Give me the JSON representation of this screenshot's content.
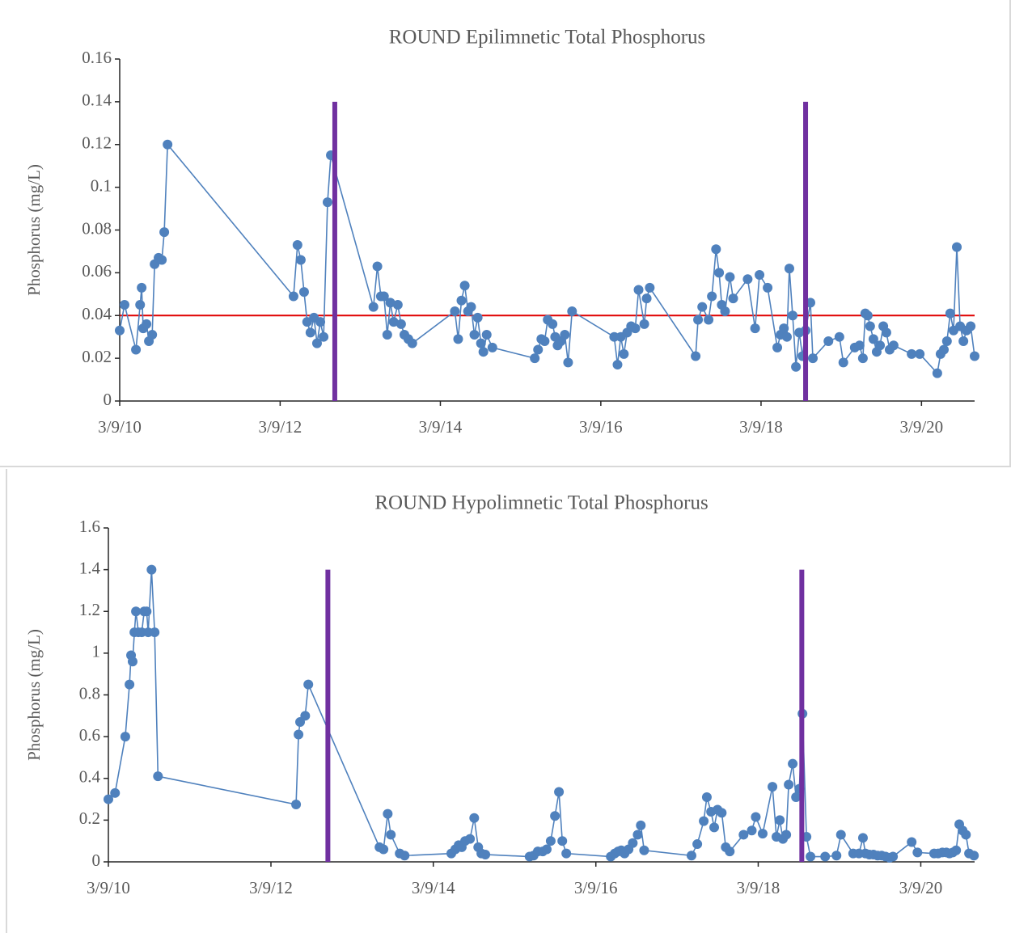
{
  "chart_data": [
    {
      "type": "line",
      "title": "ROUND Epilimnetic Total Phosphorus",
      "ylabel": "Phosphorus (mg/L)",
      "xlim": [
        "2010-03-09",
        "2020-11-06"
      ],
      "xticks": [
        {
          "value": "2010-03-09",
          "label": "3/9/10"
        },
        {
          "value": "2012-03-09",
          "label": "3/9/12"
        },
        {
          "value": "2014-03-09",
          "label": "3/9/14"
        },
        {
          "value": "2016-03-09",
          "label": "3/9/16"
        },
        {
          "value": "2018-03-09",
          "label": "3/9/18"
        },
        {
          "value": "2020-03-09",
          "label": "3/9/20"
        }
      ],
      "ylim": [
        0,
        0.16
      ],
      "yticks": [
        0,
        0.02,
        0.04,
        0.06,
        0.08,
        0.1,
        0.12,
        0.14,
        0.16
      ],
      "color": "#4f81bd",
      "x": [
        "2010-03-09",
        "2010-03-31",
        "2010-05-22",
        "2010-06-10",
        "2010-06-17",
        "2010-06-24",
        "2010-07-09",
        "2010-07-20",
        "2010-08-04",
        "2010-08-15",
        "2010-09-02",
        "2010-09-17",
        "2010-09-28",
        "2010-10-13",
        "2012-05-09",
        "2012-05-27",
        "2012-06-11",
        "2012-06-26",
        "2012-07-10",
        "2012-07-25",
        "2012-08-10",
        "2012-08-24",
        "2012-09-08",
        "2012-09-23",
        "2012-10-11",
        "2012-10-26",
        "2013-05-08",
        "2013-05-26",
        "2013-06-11",
        "2013-06-25",
        "2013-07-10",
        "2013-07-24",
        "2013-08-08",
        "2013-08-27",
        "2013-09-11",
        "2013-09-26",
        "2013-10-14",
        "2013-11-01",
        "2014-05-14",
        "2014-05-29",
        "2014-06-13",
        "2014-06-28",
        "2014-07-13",
        "2014-07-27",
        "2014-08-11",
        "2014-08-26",
        "2014-09-10",
        "2014-09-21",
        "2014-10-06",
        "2014-11-01",
        "2015-05-13",
        "2015-05-28",
        "2015-06-12",
        "2015-06-27",
        "2015-07-11",
        "2015-08-02",
        "2015-08-14",
        "2015-08-25",
        "2015-09-09",
        "2015-09-27",
        "2015-10-12",
        "2015-10-30",
        "2016-05-09",
        "2016-05-24",
        "2016-06-08",
        "2016-06-22",
        "2016-07-07",
        "2016-07-25",
        "2016-08-13",
        "2016-08-28",
        "2016-09-23",
        "2016-10-04",
        "2016-10-18",
        "2017-05-15",
        "2017-05-26",
        "2017-06-14",
        "2017-07-13",
        "2017-07-28",
        "2017-08-16",
        "2017-08-30",
        "2017-09-11",
        "2017-09-26",
        "2017-10-18",
        "2017-11-02",
        "2018-01-07",
        "2018-02-10",
        "2018-03-02",
        "2018-04-08",
        "2018-05-22",
        "2018-06-06",
        "2018-06-21",
        "2018-07-05",
        "2018-07-16",
        "2018-07-31",
        "2018-08-15",
        "2018-08-30",
        "2018-09-14",
        "2018-09-28",
        "2018-10-20",
        "2018-10-31",
        "2019-01-10",
        "2019-03-01",
        "2019-03-19",
        "2019-05-10",
        "2019-06-01",
        "2019-06-16",
        "2019-06-27",
        "2019-07-08",
        "2019-07-19",
        "2019-08-03",
        "2019-08-18",
        "2019-09-02",
        "2019-09-17",
        "2019-10-01",
        "2019-10-16",
        "2019-11-03",
        "2020-01-24",
        "2020-03-01",
        "2020-05-20",
        "2020-06-04",
        "2020-06-19",
        "2020-07-03",
        "2020-07-18",
        "2020-08-02",
        "2020-08-17",
        "2020-09-01",
        "2020-09-16",
        "2020-09-30",
        "2020-10-19",
        "2020-11-06"
      ],
      "values": [
        0.033,
        0.045,
        0.024,
        0.045,
        0.053,
        0.034,
        0.036,
        0.028,
        0.031,
        0.064,
        0.067,
        0.066,
        0.079,
        0.12,
        0.049,
        0.073,
        0.066,
        0.051,
        0.037,
        0.032,
        0.039,
        0.027,
        0.037,
        0.03,
        0.093,
        0.115,
        0.044,
        0.063,
        0.049,
        0.049,
        0.031,
        0.046,
        0.037,
        0.045,
        0.036,
        0.031,
        0.029,
        0.027,
        0.042,
        0.029,
        0.047,
        0.054,
        0.042,
        0.044,
        0.031,
        0.039,
        0.027,
        0.023,
        0.031,
        0.025,
        0.02,
        0.024,
        0.029,
        0.028,
        0.038,
        0.036,
        0.03,
        0.026,
        0.028,
        0.031,
        0.018,
        0.042,
        0.03,
        0.017,
        0.03,
        0.022,
        0.032,
        0.035,
        0.034,
        0.052,
        0.036,
        0.048,
        0.053,
        0.021,
        0.038,
        0.044,
        0.038,
        0.049,
        0.071,
        0.06,
        0.045,
        0.042,
        0.058,
        0.048,
        0.057,
        0.034,
        0.059,
        0.053,
        0.025,
        0.031,
        0.034,
        0.03,
        0.062,
        0.04,
        0.016,
        0.032,
        0.021,
        0.033,
        0.046,
        0.02,
        0.028,
        0.03,
        0.018,
        0.025,
        0.026,
        0.02,
        0.041,
        0.04,
        0.035,
        0.029,
        0.023,
        0.026,
        0.035,
        0.032,
        0.024,
        0.026,
        0.022,
        0.022,
        0.013,
        0.022,
        0.024,
        0.028,
        0.041,
        0.033,
        0.072,
        0.035,
        0.028,
        0.033,
        0.035,
        0.021
      ],
      "hlines": [
        {
          "value": 0.04,
          "color": "#e00000"
        }
      ],
      "vlines": [
        {
          "x": "2012-11-13",
          "ymax": 0.14
        },
        {
          "x": "2018-09-28",
          "ymax": 0.14
        }
      ],
      "vline_color": "#7030a0"
    },
    {
      "type": "line",
      "title": "ROUND Hypolimnetic Total Phosphorus",
      "ylabel": "Phosphorus (mg/L)",
      "xlim": [
        "2010-03-09",
        "2020-11-06"
      ],
      "xticks": [
        {
          "value": "2010-03-09",
          "label": "3/9/10"
        },
        {
          "value": "2012-03-09",
          "label": "3/9/12"
        },
        {
          "value": "2014-03-09",
          "label": "3/9/14"
        },
        {
          "value": "2016-03-09",
          "label": "3/9/16"
        },
        {
          "value": "2018-03-09",
          "label": "3/9/18"
        },
        {
          "value": "2020-03-09",
          "label": "3/9/20"
        }
      ],
      "ylim": [
        0,
        1.6
      ],
      "yticks": [
        0,
        0.2,
        0.4,
        0.6,
        0.8,
        1,
        1.2,
        1.4,
        1.6
      ],
      "color": "#4f81bd",
      "x": [
        "2010-03-09",
        "2010-04-08",
        "2010-05-24",
        "2010-06-12",
        "2010-06-19",
        "2010-06-26",
        "2010-07-04",
        "2010-07-11",
        "2010-07-22",
        "2010-08-06",
        "2010-08-17",
        "2010-08-28",
        "2010-09-04",
        "2010-09-19",
        "2010-10-03",
        "2010-10-18",
        "2012-06-30",
        "2012-07-11",
        "2012-07-18",
        "2012-08-10",
        "2012-08-24",
        "2013-07-10",
        "2013-07-28",
        "2013-08-16",
        "2013-08-30",
        "2013-10-09",
        "2013-10-31",
        "2014-05-29",
        "2014-06-16",
        "2014-07-01",
        "2014-07-15",
        "2014-07-30",
        "2014-08-21",
        "2014-09-09",
        "2014-09-27",
        "2014-10-11",
        "2014-10-29",
        "2015-05-16",
        "2015-06-03",
        "2015-06-22",
        "2015-07-14",
        "2015-08-01",
        "2015-08-19",
        "2015-09-07",
        "2015-09-25",
        "2015-10-10",
        "2015-10-28",
        "2016-05-15",
        "2016-06-02",
        "2016-06-17",
        "2016-07-01",
        "2016-07-16",
        "2016-08-03",
        "2016-08-22",
        "2016-09-13",
        "2016-09-27",
        "2016-10-12",
        "2017-05-13",
        "2017-06-08",
        "2017-07-07",
        "2017-07-21",
        "2017-08-09",
        "2017-08-23",
        "2017-09-07",
        "2017-09-26",
        "2017-10-14",
        "2017-11-01",
        "2018-01-02",
        "2018-02-08",
        "2018-02-26",
        "2018-03-29",
        "2018-05-12",
        "2018-05-30",
        "2018-06-14",
        "2018-06-28",
        "2018-07-13",
        "2018-07-24",
        "2018-08-11",
        "2018-08-26",
        "2018-09-10",
        "2018-09-24",
        "2018-10-12",
        "2018-10-30",
        "2019-01-04",
        "2019-02-24",
        "2019-03-16",
        "2019-05-10",
        "2019-06-05",
        "2019-06-23",
        "2019-07-04",
        "2019-07-22",
        "2019-08-09",
        "2019-08-28",
        "2019-09-15",
        "2019-10-03",
        "2019-10-21",
        "2019-11-05",
        "2020-01-28",
        "2020-02-23",
        "2020-05-08",
        "2020-05-26",
        "2020-06-14",
        "2020-07-02",
        "2020-07-16",
        "2020-07-31",
        "2020-08-15",
        "2020-08-29",
        "2020-09-13",
        "2020-09-28",
        "2020-10-12",
        "2020-11-03"
      ],
      "values": [
        0.3,
        0.33,
        0.6,
        0.85,
        0.99,
        0.96,
        1.1,
        1.2,
        1.1,
        1.1,
        1.2,
        1.2,
        1.1,
        1.4,
        1.1,
        0.41,
        0.275,
        0.61,
        0.67,
        0.7,
        0.85,
        0.07,
        0.06,
        0.23,
        0.13,
        0.04,
        0.03,
        0.04,
        0.06,
        0.08,
        0.07,
        0.1,
        0.11,
        0.21,
        0.07,
        0.04,
        0.035,
        0.025,
        0.03,
        0.05,
        0.05,
        0.06,
        0.1,
        0.22,
        0.335,
        0.1,
        0.04,
        0.025,
        0.04,
        0.05,
        0.055,
        0.04,
        0.06,
        0.09,
        0.13,
        0.175,
        0.055,
        0.03,
        0.085,
        0.195,
        0.31,
        0.24,
        0.165,
        0.25,
        0.235,
        0.07,
        0.05,
        0.13,
        0.15,
        0.215,
        0.135,
        0.36,
        0.12,
        0.2,
        0.11,
        0.13,
        0.37,
        0.47,
        0.31,
        0.35,
        0.71,
        0.12,
        0.025,
        0.025,
        0.03,
        0.13,
        0.04,
        0.04,
        0.115,
        0.04,
        0.035,
        0.035,
        0.03,
        0.03,
        0.025,
        0.02,
        0.025,
        0.095,
        0.045,
        0.04,
        0.04,
        0.045,
        0.045,
        0.04,
        0.045,
        0.055,
        0.18,
        0.15,
        0.13,
        0.04,
        0.03
      ],
      "vlines": [
        {
          "x": "2012-11-20",
          "ymax": 1.4
        },
        {
          "x": "2018-09-21",
          "ymax": 1.4
        }
      ],
      "vline_color": "#7030a0"
    }
  ]
}
